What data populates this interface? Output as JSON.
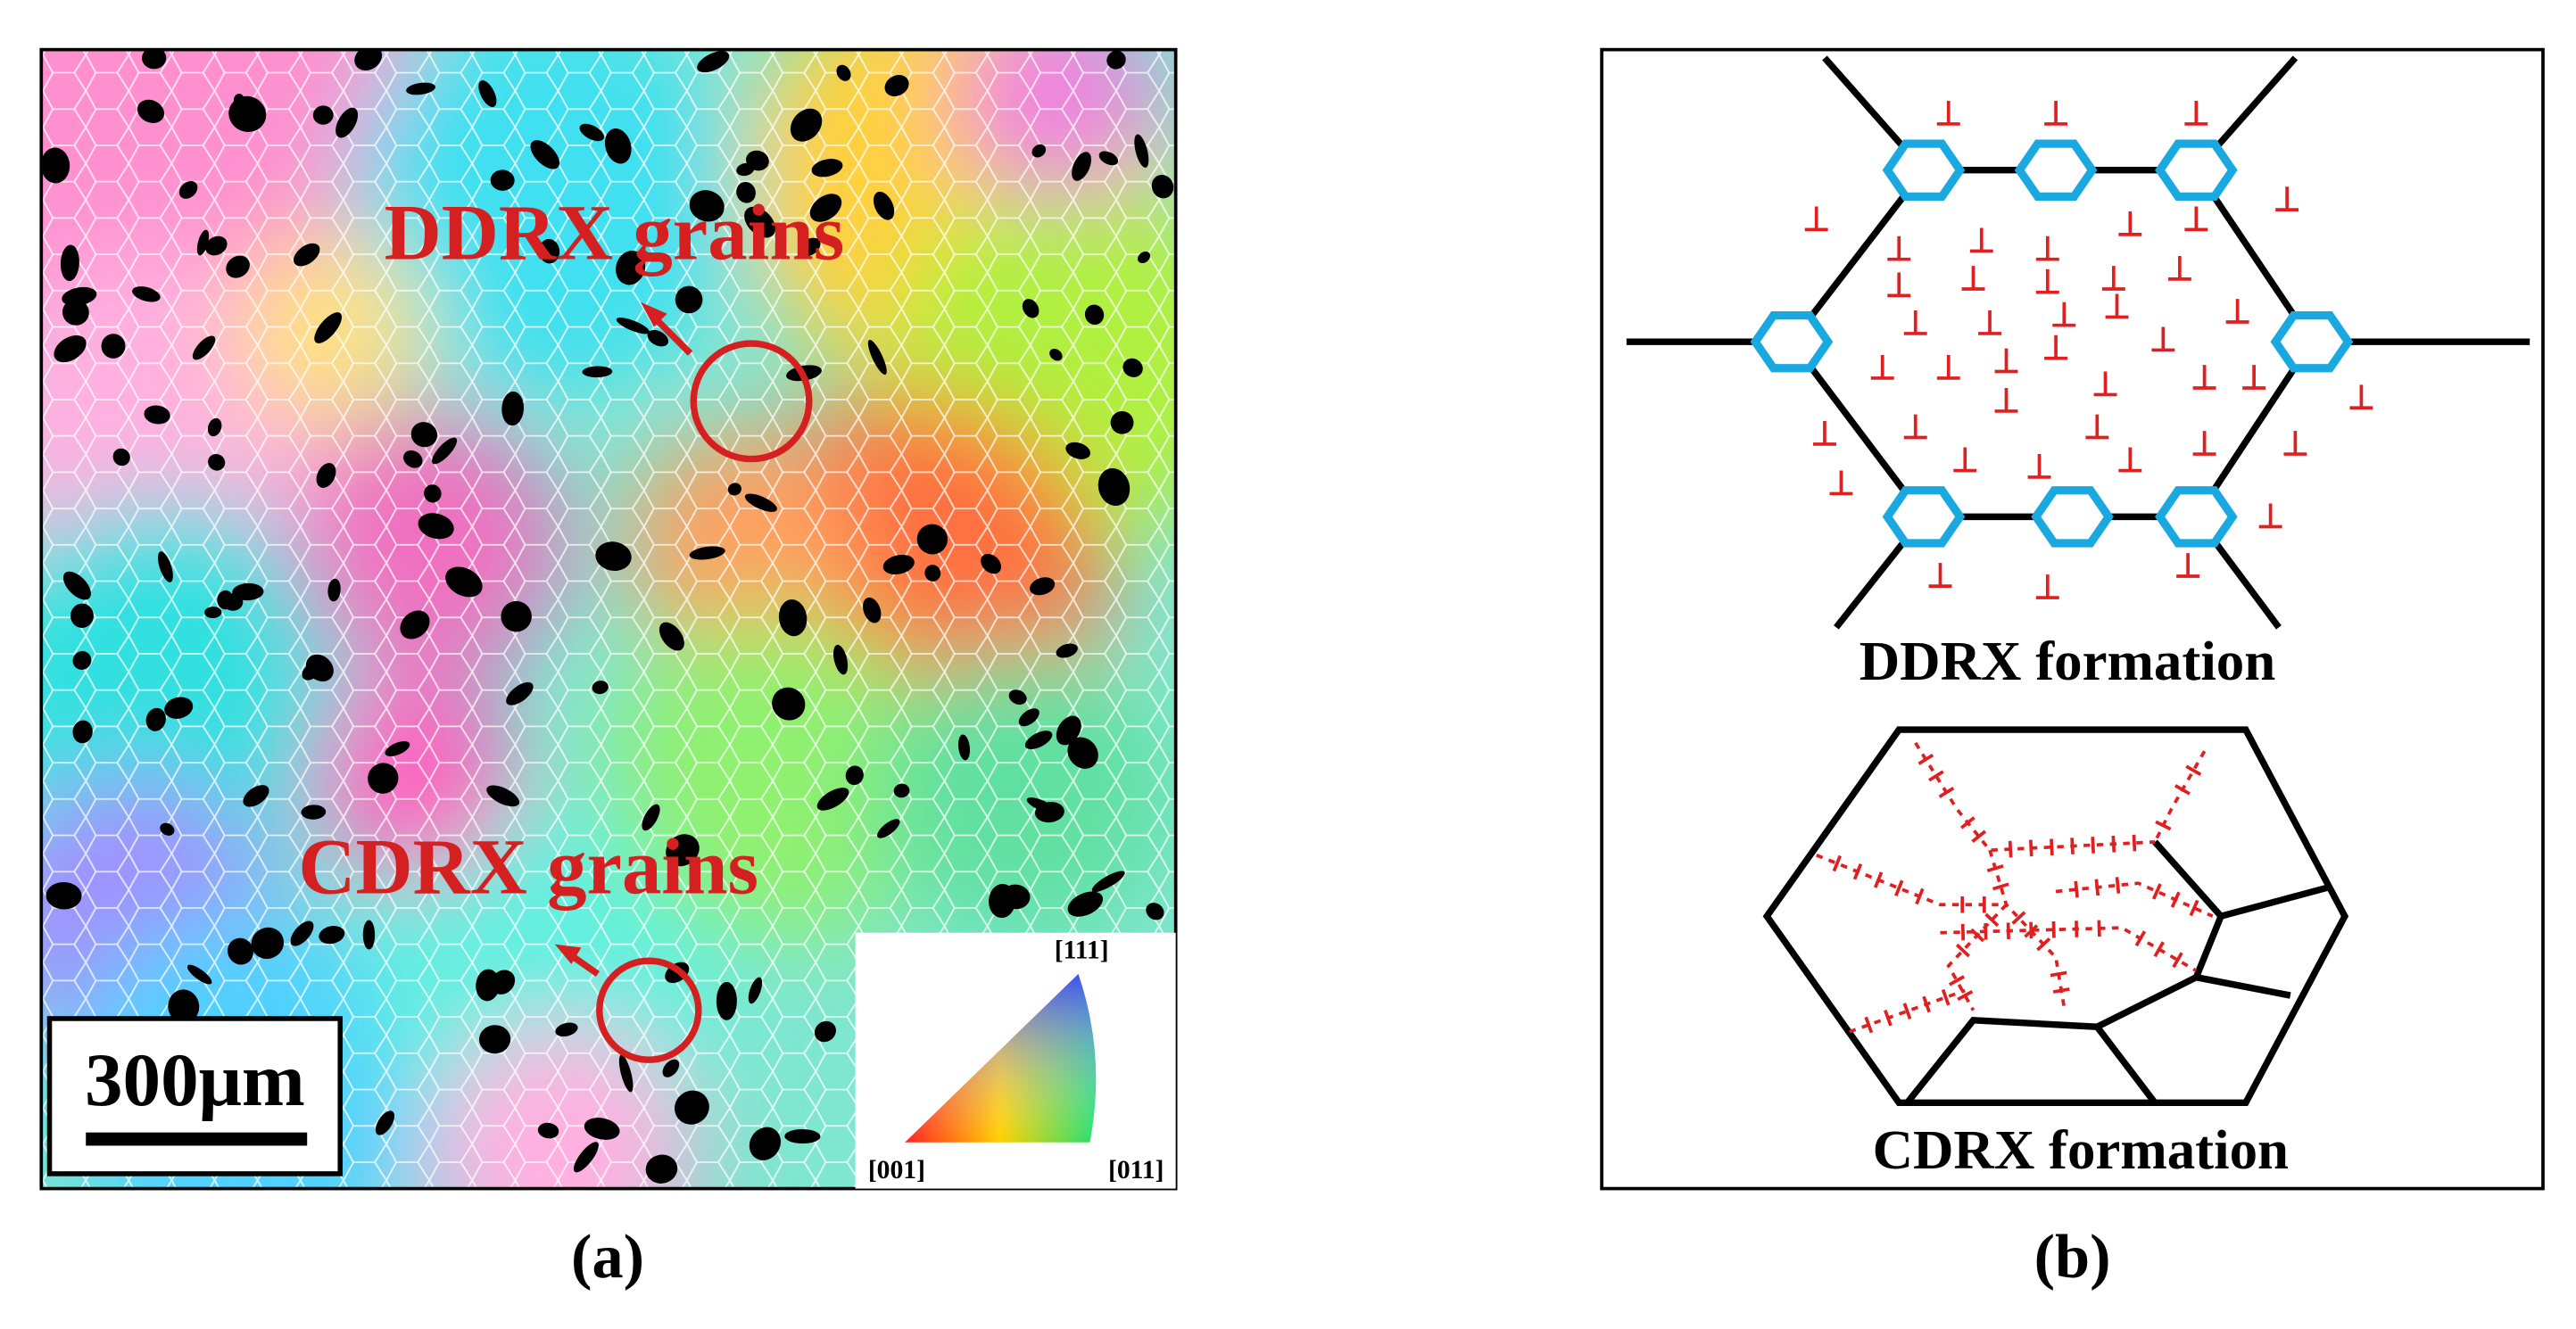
{
  "panel_a": {
    "label_ddrx": "DDRX grains",
    "label_cdrx": "CDRX grains",
    "scale_bar": "300μm",
    "ipf_top": "[111]",
    "ipf_left": "[001]",
    "ipf_right": "[011]",
    "caption": "(a)"
  },
  "panel_b": {
    "ddrx_title": "DDRX formation",
    "cdrx_title": "CDRX formation",
    "caption": "(b)"
  }
}
